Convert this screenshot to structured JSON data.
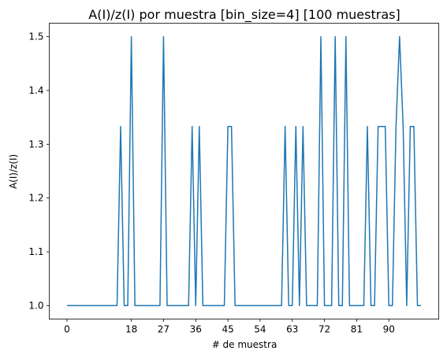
{
  "chart_data": {
    "type": "line",
    "title": "A(I)/z(I) por muestra [bin_size=4] [100 muestras]",
    "xlabel": "# de muestra",
    "ylabel": "A(I)/z(I)",
    "xlim": [
      -4.95,
      103.95
    ],
    "ylim": [
      0.975,
      1.525
    ],
    "x_ticks": [
      0,
      18,
      27,
      36,
      45,
      54,
      63,
      72,
      81,
      90
    ],
    "y_ticks": [
      1.0,
      1.1,
      1.2,
      1.3,
      1.4,
      1.5
    ],
    "y_tick_labels": [
      "1.0",
      "1.1",
      "1.2",
      "1.3",
      "1.4",
      "1.5"
    ],
    "grid": false,
    "series": [
      {
        "color": "#1f77b4",
        "x": [
          0,
          1,
          2,
          3,
          4,
          5,
          6,
          7,
          8,
          9,
          10,
          11,
          12,
          13,
          14,
          15,
          16,
          17,
          18,
          19,
          20,
          21,
          22,
          23,
          24,
          25,
          26,
          27,
          28,
          29,
          30,
          31,
          32,
          33,
          34,
          35,
          36,
          37,
          38,
          39,
          40,
          41,
          42,
          43,
          44,
          45,
          46,
          47,
          48,
          49,
          50,
          51,
          52,
          53,
          54,
          55,
          56,
          57,
          58,
          59,
          60,
          61,
          62,
          63,
          64,
          65,
          66,
          67,
          68,
          69,
          70,
          71,
          72,
          73,
          74,
          75,
          76,
          77,
          78,
          79,
          80,
          81,
          82,
          83,
          84,
          85,
          86,
          87,
          88,
          89,
          90,
          91,
          92,
          93,
          94,
          95,
          96,
          97,
          98,
          99
        ],
        "values": [
          1.0,
          1.0,
          1.0,
          1.0,
          1.0,
          1.0,
          1.0,
          1.0,
          1.0,
          1.0,
          1.0,
          1.0,
          1.0,
          1.0,
          1.0,
          1.333,
          1.0,
          1.0,
          1.5,
          1.0,
          1.0,
          1.0,
          1.0,
          1.0,
          1.0,
          1.0,
          1.0,
          1.5,
          1.0,
          1.0,
          1.0,
          1.0,
          1.0,
          1.0,
          1.0,
          1.333,
          1.0,
          1.333,
          1.0,
          1.0,
          1.0,
          1.0,
          1.0,
          1.0,
          1.0,
          1.333,
          1.333,
          1.0,
          1.0,
          1.0,
          1.0,
          1.0,
          1.0,
          1.0,
          1.0,
          1.0,
          1.0,
          1.0,
          1.0,
          1.0,
          1.0,
          1.333,
          1.0,
          1.0,
          1.333,
          1.0,
          1.333,
          1.0,
          1.0,
          1.0,
          1.0,
          1.5,
          1.0,
          1.0,
          1.0,
          1.5,
          1.0,
          1.0,
          1.5,
          1.0,
          1.0,
          1.0,
          1.0,
          1.0,
          1.333,
          1.0,
          1.0,
          1.333,
          1.333,
          1.333,
          1.0,
          1.0,
          1.333,
          1.5,
          1.333,
          1.0,
          1.333,
          1.333,
          1.0,
          1.0
        ]
      }
    ]
  }
}
